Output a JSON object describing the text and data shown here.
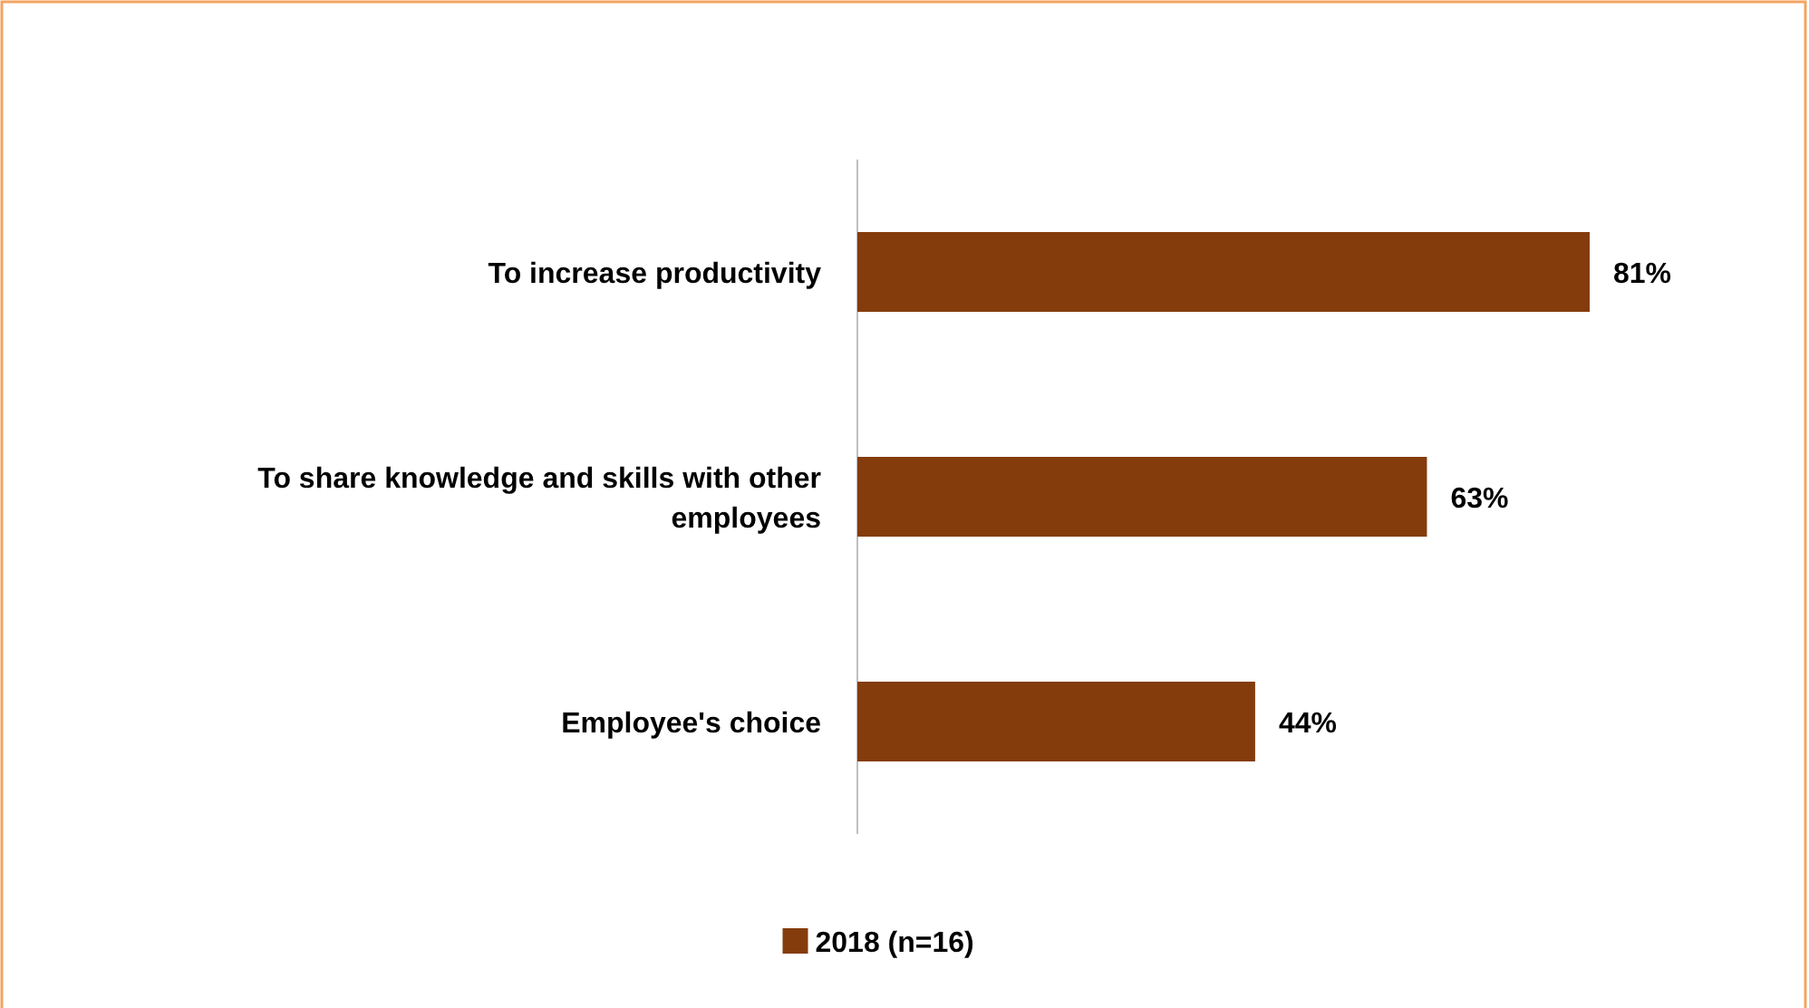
{
  "chart_data": {
    "type": "bar",
    "orientation": "horizontal",
    "categories": [
      "To increase productivity",
      "To share knowledge and skills with other employees",
      "Employee's choice"
    ],
    "series": [
      {
        "name": "2018 (n=16)",
        "color": "#843c0c",
        "values": [
          81,
          63,
          44
        ],
        "value_labels": [
          "81%",
          "63%",
          "44%"
        ]
      }
    ],
    "legend": "bottom"
  }
}
